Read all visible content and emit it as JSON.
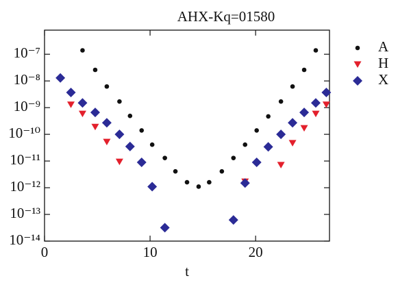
{
  "chart_data": {
    "type": "scatter",
    "title": "AHX-Kq=01580",
    "xlabel": "t",
    "xlim": [
      0,
      27
    ],
    "xticks": [
      0,
      10,
      20
    ],
    "ylim": [
      1e-14,
      8e-07
    ],
    "ylog": true,
    "yticks": [
      {
        "value": 1e-14,
        "label": "10⁻¹⁴"
      },
      {
        "value": 1e-13,
        "label": "10⁻¹³"
      },
      {
        "value": 1e-12,
        "label": "10⁻¹²"
      },
      {
        "value": 1e-11,
        "label": "10⁻¹¹"
      },
      {
        "value": 1e-10,
        "label": "10⁻¹⁰"
      },
      {
        "value": 1e-09,
        "label": "10⁻⁹"
      },
      {
        "value": 1e-08,
        "label": "10⁻⁸"
      },
      {
        "value": 1e-07,
        "label": "10⁻⁷"
      }
    ],
    "legend": "outside-right",
    "series": [
      {
        "name": "A",
        "color": "#111111",
        "marker": "circle",
        "x": [
          3.6,
          4.8,
          5.9,
          7.1,
          8.1,
          9.2,
          10.2,
          11.4,
          12.4,
          13.5,
          14.6,
          15.6,
          16.8,
          17.9,
          19.0,
          20.1,
          21.2,
          22.4,
          23.5,
          24.6,
          25.7
        ],
        "values": [
          1.4e-07,
          2.6e-08,
          6.2e-09,
          1.7e-09,
          4.9e-10,
          1.4e-10,
          4.1e-11,
          1.3e-11,
          4.1e-12,
          1.6e-12,
          1.1e-12,
          1.6e-12,
          4.1e-12,
          1.3e-11,
          4.1e-11,
          1.4e-10,
          4.7e-10,
          1.7e-09,
          6.2e-09,
          2.6e-08,
          1.4e-07
        ]
      },
      {
        "name": "H",
        "color": "#e3202c",
        "marker": "triangle-down",
        "x": [
          2.5,
          3.6,
          4.8,
          5.9,
          7.1,
          19.0,
          22.4,
          23.5,
          24.6,
          25.7,
          26.7
        ],
        "values": [
          1.3e-09,
          5.9e-10,
          1.9e-10,
          5.2e-11,
          9.4e-12,
          1.7e-12,
          7.1e-12,
          4.7e-11,
          1.7e-10,
          5.9e-10,
          1.3e-09
        ]
      },
      {
        "name": "X",
        "color": "#2b2b96",
        "marker": "diamond",
        "x": [
          1.5,
          2.5,
          3.6,
          4.8,
          5.9,
          7.1,
          8.1,
          9.2,
          10.2,
          11.4,
          17.9,
          19.0,
          20.1,
          21.2,
          22.4,
          23.5,
          24.6,
          25.7,
          26.7
        ],
        "values": [
          1.3e-08,
          3.7e-09,
          1.5e-09,
          6.6e-10,
          2.7e-10,
          1e-10,
          3.5e-11,
          8.9e-12,
          1.1e-12,
          3.2e-14,
          6.2e-14,
          1.5e-12,
          8.9e-12,
          3.4e-11,
          1e-10,
          2.7e-10,
          6.6e-10,
          1.5e-09,
          3.7e-09
        ]
      }
    ]
  }
}
